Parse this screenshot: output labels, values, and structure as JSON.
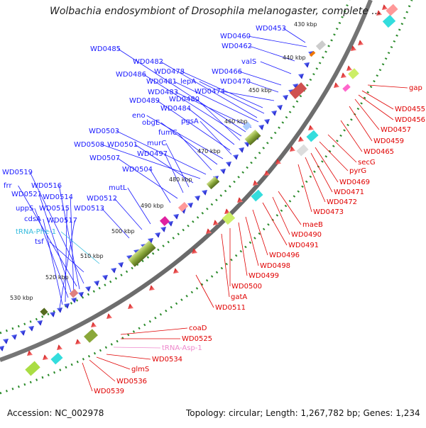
{
  "title": "Wolbachia endosymbiont of Drosophila melanogaster, complete ...",
  "footer": {
    "accession": "Accession: NC_002978",
    "topology": "Topology: circular; Length: 1,267,782 bp; Genes: 1,234"
  },
  "ticks": [
    "430 kbp",
    "440 kbp",
    "450 kbp",
    "460 kbp",
    "470 kbp",
    "480 kbp",
    "490 kbp",
    "500 kbp",
    "510 kbp",
    "520 kbp",
    "530 kbp"
  ],
  "colors": {
    "forward_label": "#1a1aff",
    "reverse_label": "#e00000",
    "trna_forward": "#33bbdd",
    "trna_reverse": "#ee88cc",
    "backbone": "#7a7a7a",
    "tick_dots": "#2a8a2a"
  },
  "forward_labels": [
    "WD0453",
    "WD0460",
    "WD0462",
    "valS",
    "WD0466",
    "WD0470",
    "WD0474",
    "WD0478",
    "lepA",
    "WD0482",
    "WD0481",
    "WD0483",
    "WD0485",
    "WD0486",
    "WD0480",
    "WD0484",
    "WD0489",
    "pgsA",
    "eno",
    "obgE",
    "fumC",
    "WD0503",
    "WD0508",
    "WD0501",
    "murC",
    "WD0497",
    "WD0507",
    "WD0504",
    "WD0519",
    "frr",
    "WD0516",
    "WD0521",
    "WD0514",
    "mutL",
    "WD0512",
    "uppS",
    "WD0515",
    "WD0513",
    "cdsA",
    "WD0517",
    "tRNA-Phe-1",
    "tsf"
  ],
  "reverse_labels": [
    "gap",
    "WD0455",
    "WD0456",
    "WD0457",
    "WD0459",
    "WD0465",
    "secG",
    "pyrG",
    "WD0469",
    "WD0471",
    "WD0472",
    "WD0473",
    "maeB",
    "WD0490",
    "WD0491",
    "WD0496",
    "WD0498",
    "WD0499",
    "WD0500",
    "gatA",
    "WD0511",
    "coaD",
    "WD0525",
    "tRNA-Asp-1",
    "WD0534",
    "glmS",
    "WD0536",
    "WD0539"
  ]
}
